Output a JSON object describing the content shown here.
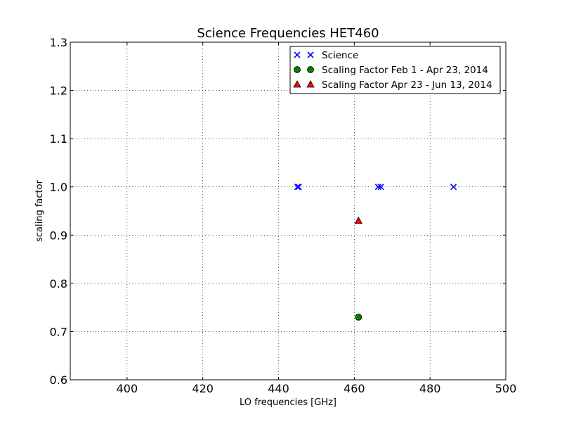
{
  "chart_data": {
    "type": "scatter",
    "title": "Science Frequencies HET460",
    "xlabel": "LO frequencies [GHz]",
    "ylabel": "scaling factor",
    "xlim": [
      385,
      500
    ],
    "ylim": [
      0.6,
      1.3
    ],
    "xticks": [
      "400",
      "420",
      "440",
      "460",
      "480",
      "500"
    ],
    "yticks": [
      "0.6",
      "0.7",
      "0.8",
      "0.9",
      "1.0",
      "1.1",
      "1.2",
      "1.3"
    ],
    "grid": true,
    "legend_position": "top-right",
    "series": [
      {
        "name": "Science",
        "marker": "x",
        "color": "#0000ff",
        "points": [
          {
            "x": 445.0,
            "y": 1.0
          },
          {
            "x": 445.3,
            "y": 1.0
          },
          {
            "x": 466.3,
            "y": 1.0
          },
          {
            "x": 467.0,
            "y": 1.0
          },
          {
            "x": 486.2,
            "y": 1.0
          }
        ]
      },
      {
        "name": "Scaling Factor Feb 1 - Apr 23, 2014",
        "marker": "circle",
        "color": "#007f00",
        "points": [
          {
            "x": 461.1,
            "y": 0.73
          }
        ]
      },
      {
        "name": "Scaling Factor Apr 23 - Jun 13, 2014",
        "marker": "triangle",
        "color": "#ff0000",
        "points": [
          {
            "x": 461.1,
            "y": 0.93
          }
        ]
      }
    ]
  }
}
